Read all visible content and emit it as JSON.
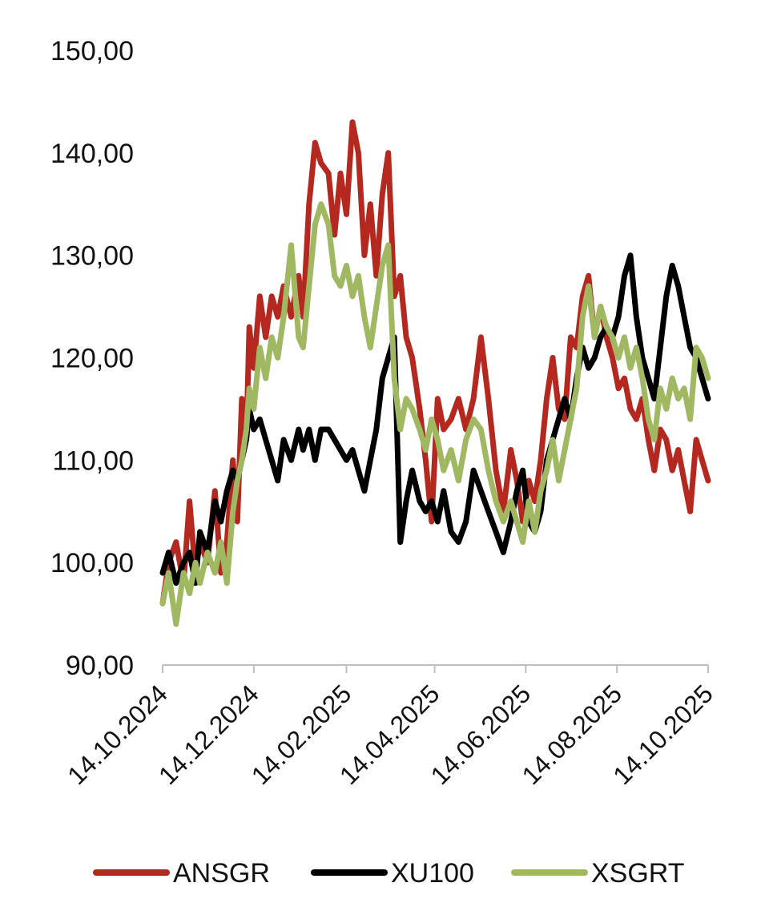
{
  "chart_data": {
    "type": "line",
    "title": "",
    "xlabel": "",
    "ylabel": "",
    "ylim": [
      90,
      150
    ],
    "yticks": [
      "90,00",
      "100,00",
      "110,00",
      "120,00",
      "130,00",
      "140,00",
      "150,00"
    ],
    "ytick_values": [
      90,
      100,
      110,
      120,
      130,
      140,
      150
    ],
    "xlim": [
      "2024-10-14",
      "2025-10-14"
    ],
    "xticks": [
      "14.10.2024",
      "14.12.2024",
      "14.02.2025",
      "14.04.2025",
      "14.06.2025",
      "14.08.2025",
      "14.10.2025"
    ],
    "xtick_dates": [
      "2024-10-14",
      "2024-12-14",
      "2025-02-14",
      "2025-04-14",
      "2025-06-14",
      "2025-08-14",
      "2025-10-14"
    ],
    "grid": false,
    "legend_position": "bottom",
    "series": [
      {
        "name": "ANSGR",
        "color": "#B5281F",
        "points": [
          [
            "2024-10-14",
            96
          ],
          [
            "2024-10-18",
            100
          ],
          [
            "2024-10-23",
            102
          ],
          [
            "2024-10-28",
            98
          ],
          [
            "2024-11-01",
            106
          ],
          [
            "2024-11-05",
            99
          ],
          [
            "2024-11-08",
            102
          ],
          [
            "2024-11-13",
            100
          ],
          [
            "2024-11-18",
            107
          ],
          [
            "2024-11-22",
            99
          ],
          [
            "2024-11-26",
            102
          ],
          [
            "2024-11-30",
            110
          ],
          [
            "2024-12-03",
            104
          ],
          [
            "2024-12-06",
            116
          ],
          [
            "2024-12-09",
            112
          ],
          [
            "2024-12-11",
            123
          ],
          [
            "2024-12-14",
            119
          ],
          [
            "2024-12-18",
            126
          ],
          [
            "2024-12-22",
            122
          ],
          [
            "2024-12-26",
            126
          ],
          [
            "2024-12-30",
            124
          ],
          [
            "2025-01-03",
            127
          ],
          [
            "2025-01-08",
            124
          ],
          [
            "2025-01-13",
            128
          ],
          [
            "2025-01-16",
            124
          ],
          [
            "2025-01-20",
            135
          ],
          [
            "2025-01-24",
            141
          ],
          [
            "2025-01-28",
            139
          ],
          [
            "2025-02-02",
            138
          ],
          [
            "2025-02-06",
            132
          ],
          [
            "2025-02-10",
            138
          ],
          [
            "2025-02-14",
            134
          ],
          [
            "2025-02-18",
            143
          ],
          [
            "2025-02-22",
            140
          ],
          [
            "2025-02-26",
            130
          ],
          [
            "2025-03-02",
            135
          ],
          [
            "2025-03-06",
            128
          ],
          [
            "2025-03-10",
            136
          ],
          [
            "2025-03-14",
            140
          ],
          [
            "2025-03-18",
            126
          ],
          [
            "2025-03-22",
            128
          ],
          [
            "2025-03-26",
            122
          ],
          [
            "2025-03-30",
            120
          ],
          [
            "2025-04-04",
            115
          ],
          [
            "2025-04-08",
            110
          ],
          [
            "2025-04-12",
            104
          ],
          [
            "2025-04-16",
            116
          ],
          [
            "2025-04-20",
            113
          ],
          [
            "2025-04-25",
            114
          ],
          [
            "2025-04-30",
            116
          ],
          [
            "2025-05-05",
            113
          ],
          [
            "2025-05-10",
            116
          ],
          [
            "2025-05-15",
            122
          ],
          [
            "2025-05-20",
            116
          ],
          [
            "2025-05-25",
            109
          ],
          [
            "2025-05-30",
            105
          ],
          [
            "2025-06-04",
            111
          ],
          [
            "2025-06-08",
            108
          ],
          [
            "2025-06-12",
            104
          ],
          [
            "2025-06-16",
            108
          ],
          [
            "2025-06-20",
            106
          ],
          [
            "2025-06-24",
            110
          ],
          [
            "2025-06-28",
            116
          ],
          [
            "2025-07-02",
            120
          ],
          [
            "2025-07-06",
            115
          ],
          [
            "2025-07-10",
            114
          ],
          [
            "2025-07-14",
            122
          ],
          [
            "2025-07-18",
            121
          ],
          [
            "2025-07-22",
            126
          ],
          [
            "2025-07-26",
            128
          ],
          [
            "2025-07-30",
            122
          ],
          [
            "2025-08-03",
            125
          ],
          [
            "2025-08-07",
            122
          ],
          [
            "2025-08-11",
            120
          ],
          [
            "2025-08-15",
            117
          ],
          [
            "2025-08-19",
            118
          ],
          [
            "2025-08-23",
            115
          ],
          [
            "2025-08-27",
            114
          ],
          [
            "2025-08-31",
            116
          ],
          [
            "2025-09-04",
            112
          ],
          [
            "2025-09-08",
            109
          ],
          [
            "2025-09-12",
            113
          ],
          [
            "2025-09-16",
            112
          ],
          [
            "2025-09-20",
            109
          ],
          [
            "2025-09-24",
            111
          ],
          [
            "2025-09-28",
            108
          ],
          [
            "2025-10-02",
            105
          ],
          [
            "2025-10-06",
            112
          ],
          [
            "2025-10-10",
            110
          ],
          [
            "2025-10-14",
            108
          ]
        ]
      },
      {
        "name": "XU100",
        "color": "#000000",
        "points": [
          [
            "2024-10-14",
            99
          ],
          [
            "2024-10-18",
            101
          ],
          [
            "2024-10-23",
            98
          ],
          [
            "2024-10-28",
            100
          ],
          [
            "2024-11-01",
            101
          ],
          [
            "2024-11-05",
            98
          ],
          [
            "2024-11-08",
            103
          ],
          [
            "2024-11-13",
            101
          ],
          [
            "2024-11-18",
            106
          ],
          [
            "2024-11-22",
            104
          ],
          [
            "2024-11-26",
            107
          ],
          [
            "2024-11-30",
            109
          ],
          [
            "2024-12-03",
            108
          ],
          [
            "2024-12-06",
            110
          ],
          [
            "2024-12-09",
            112
          ],
          [
            "2024-12-11",
            115
          ],
          [
            "2024-12-14",
            113
          ],
          [
            "2024-12-18",
            114
          ],
          [
            "2024-12-22",
            112
          ],
          [
            "2024-12-26",
            110
          ],
          [
            "2024-12-30",
            108
          ],
          [
            "2025-01-03",
            112
          ],
          [
            "2025-01-08",
            110
          ],
          [
            "2025-01-13",
            113
          ],
          [
            "2025-01-16",
            111
          ],
          [
            "2025-01-20",
            113
          ],
          [
            "2025-01-24",
            110
          ],
          [
            "2025-01-28",
            113
          ],
          [
            "2025-02-02",
            113
          ],
          [
            "2025-02-06",
            112
          ],
          [
            "2025-02-10",
            111
          ],
          [
            "2025-02-14",
            110
          ],
          [
            "2025-02-18",
            111
          ],
          [
            "2025-02-22",
            109
          ],
          [
            "2025-02-26",
            107
          ],
          [
            "2025-03-02",
            110
          ],
          [
            "2025-03-06",
            113
          ],
          [
            "2025-03-10",
            118
          ],
          [
            "2025-03-14",
            120
          ],
          [
            "2025-03-18",
            122
          ],
          [
            "2025-03-22",
            102
          ],
          [
            "2025-03-26",
            106
          ],
          [
            "2025-03-30",
            109
          ],
          [
            "2025-04-04",
            106
          ],
          [
            "2025-04-08",
            105
          ],
          [
            "2025-04-12",
            106
          ],
          [
            "2025-04-16",
            104
          ],
          [
            "2025-04-20",
            107
          ],
          [
            "2025-04-25",
            103
          ],
          [
            "2025-04-30",
            102
          ],
          [
            "2025-05-05",
            104
          ],
          [
            "2025-05-10",
            109
          ],
          [
            "2025-05-15",
            107
          ],
          [
            "2025-05-20",
            105
          ],
          [
            "2025-05-25",
            103
          ],
          [
            "2025-05-30",
            101
          ],
          [
            "2025-06-04",
            104
          ],
          [
            "2025-06-08",
            107
          ],
          [
            "2025-06-12",
            109
          ],
          [
            "2025-06-16",
            104
          ],
          [
            "2025-06-20",
            103
          ],
          [
            "2025-06-24",
            105
          ],
          [
            "2025-06-28",
            110
          ],
          [
            "2025-07-02",
            112
          ],
          [
            "2025-07-06",
            114
          ],
          [
            "2025-07-10",
            116
          ],
          [
            "2025-07-14",
            114
          ],
          [
            "2025-07-18",
            118
          ],
          [
            "2025-07-22",
            121
          ],
          [
            "2025-07-26",
            119
          ],
          [
            "2025-07-30",
            120
          ],
          [
            "2025-08-03",
            122
          ],
          [
            "2025-08-07",
            123
          ],
          [
            "2025-08-11",
            122
          ],
          [
            "2025-08-15",
            124
          ],
          [
            "2025-08-19",
            128
          ],
          [
            "2025-08-23",
            130
          ],
          [
            "2025-08-27",
            124
          ],
          [
            "2025-08-31",
            120
          ],
          [
            "2025-09-04",
            118
          ],
          [
            "2025-09-08",
            116
          ],
          [
            "2025-09-12",
            121
          ],
          [
            "2025-09-16",
            126
          ],
          [
            "2025-09-20",
            129
          ],
          [
            "2025-09-24",
            127
          ],
          [
            "2025-09-28",
            124
          ],
          [
            "2025-10-02",
            121
          ],
          [
            "2025-10-06",
            120
          ],
          [
            "2025-10-10",
            118
          ],
          [
            "2025-10-14",
            116
          ]
        ]
      },
      {
        "name": "XSGRT",
        "color": "#A1B862",
        "points": [
          [
            "2024-10-14",
            96
          ],
          [
            "2024-10-18",
            99
          ],
          [
            "2024-10-23",
            94
          ],
          [
            "2024-10-28",
            99
          ],
          [
            "2024-11-01",
            97
          ],
          [
            "2024-11-05",
            100
          ],
          [
            "2024-11-08",
            98
          ],
          [
            "2024-11-13",
            101
          ],
          [
            "2024-11-18",
            99
          ],
          [
            "2024-11-22",
            102
          ],
          [
            "2024-11-26",
            98
          ],
          [
            "2024-11-30",
            105
          ],
          [
            "2024-12-03",
            108
          ],
          [
            "2024-12-06",
            110
          ],
          [
            "2024-12-09",
            113
          ],
          [
            "2024-12-11",
            117
          ],
          [
            "2024-12-14",
            115
          ],
          [
            "2024-12-18",
            121
          ],
          [
            "2024-12-22",
            118
          ],
          [
            "2024-12-26",
            122
          ],
          [
            "2024-12-30",
            120
          ],
          [
            "2025-01-03",
            124
          ],
          [
            "2025-01-08",
            131
          ],
          [
            "2025-01-13",
            122
          ],
          [
            "2025-01-16",
            121
          ],
          [
            "2025-01-20",
            127
          ],
          [
            "2025-01-24",
            133
          ],
          [
            "2025-01-28",
            135
          ],
          [
            "2025-02-02",
            133
          ],
          [
            "2025-02-06",
            128
          ],
          [
            "2025-02-10",
            127
          ],
          [
            "2025-02-14",
            129
          ],
          [
            "2025-02-18",
            126
          ],
          [
            "2025-02-22",
            128
          ],
          [
            "2025-02-26",
            124
          ],
          [
            "2025-03-02",
            121
          ],
          [
            "2025-03-06",
            125
          ],
          [
            "2025-03-10",
            129
          ],
          [
            "2025-03-14",
            131
          ],
          [
            "2025-03-18",
            118
          ],
          [
            "2025-03-22",
            113
          ],
          [
            "2025-03-26",
            116
          ],
          [
            "2025-03-30",
            115
          ],
          [
            "2025-04-04",
            113
          ],
          [
            "2025-04-08",
            111
          ],
          [
            "2025-04-12",
            114
          ],
          [
            "2025-04-16",
            112
          ],
          [
            "2025-04-20",
            109
          ],
          [
            "2025-04-25",
            111
          ],
          [
            "2025-04-30",
            108
          ],
          [
            "2025-05-05",
            112
          ],
          [
            "2025-05-10",
            114
          ],
          [
            "2025-05-15",
            113
          ],
          [
            "2025-05-20",
            109
          ],
          [
            "2025-05-25",
            106
          ],
          [
            "2025-05-30",
            104
          ],
          [
            "2025-06-04",
            106
          ],
          [
            "2025-06-08",
            104
          ],
          [
            "2025-06-12",
            102
          ],
          [
            "2025-06-16",
            106
          ],
          [
            "2025-06-20",
            103
          ],
          [
            "2025-06-24",
            107
          ],
          [
            "2025-06-28",
            109
          ],
          [
            "2025-07-02",
            112
          ],
          [
            "2025-07-06",
            108
          ],
          [
            "2025-07-10",
            111
          ],
          [
            "2025-07-14",
            114
          ],
          [
            "2025-07-18",
            117
          ],
          [
            "2025-07-22",
            124
          ],
          [
            "2025-07-26",
            127
          ],
          [
            "2025-07-30",
            122
          ],
          [
            "2025-08-03",
            125
          ],
          [
            "2025-08-07",
            123
          ],
          [
            "2025-08-11",
            122
          ],
          [
            "2025-08-15",
            120
          ],
          [
            "2025-08-19",
            122
          ],
          [
            "2025-08-23",
            119
          ],
          [
            "2025-08-27",
            121
          ],
          [
            "2025-08-31",
            118
          ],
          [
            "2025-09-04",
            114
          ],
          [
            "2025-09-08",
            112
          ],
          [
            "2025-09-12",
            117
          ],
          [
            "2025-09-16",
            115
          ],
          [
            "2025-09-20",
            118
          ],
          [
            "2025-09-24",
            116
          ],
          [
            "2025-09-28",
            117
          ],
          [
            "2025-10-02",
            114
          ],
          [
            "2025-10-06",
            121
          ],
          [
            "2025-10-10",
            120
          ],
          [
            "2025-10-14",
            118
          ]
        ]
      }
    ]
  }
}
